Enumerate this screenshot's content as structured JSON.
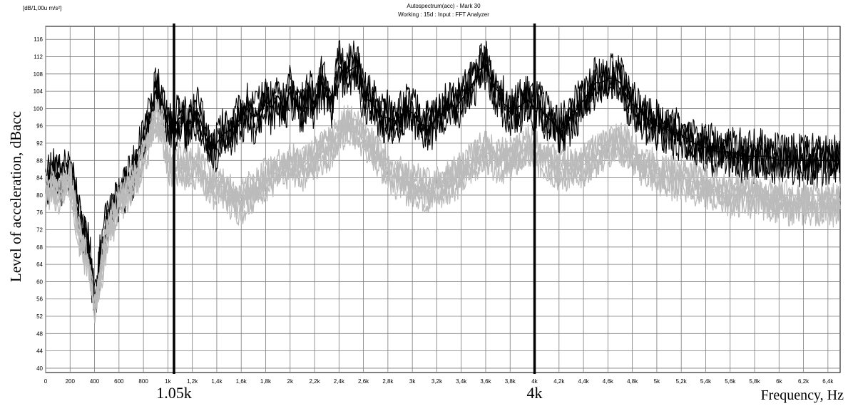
{
  "chart_data": {
    "type": "line",
    "title": "Autospectrum(acc) - Mark 30",
    "subtitle": "Working : 15d : Input : FFT Analyzer",
    "unit_label": "[dB/1,00u m/s²]",
    "ylabel": "Level of acceleration,  dBacc",
    "xlabel": "Frequency,  Hz",
    "xlim": [
      0,
      6500
    ],
    "ylim": [
      39,
      119
    ],
    "grid": true,
    "x_ticks": [
      {
        "value": 0,
        "label": "0"
      },
      {
        "value": 200,
        "label": "200"
      },
      {
        "value": 400,
        "label": "400"
      },
      {
        "value": 600,
        "label": "600"
      },
      {
        "value": 800,
        "label": "800"
      },
      {
        "value": 1000,
        "label": "1k"
      },
      {
        "value": 1200,
        "label": "1,2k"
      },
      {
        "value": 1400,
        "label": "1,4k"
      },
      {
        "value": 1600,
        "label": "1,6k"
      },
      {
        "value": 1800,
        "label": "1,8k"
      },
      {
        "value": 2000,
        "label": "2k"
      },
      {
        "value": 2200,
        "label": "2,2k"
      },
      {
        "value": 2400,
        "label": "2,4k"
      },
      {
        "value": 2600,
        "label": "2,6k"
      },
      {
        "value": 2800,
        "label": "2,8k"
      },
      {
        "value": 3000,
        "label": "3k"
      },
      {
        "value": 3200,
        "label": "3,2k"
      },
      {
        "value": 3400,
        "label": "3,4k"
      },
      {
        "value": 3600,
        "label": "3,6k"
      },
      {
        "value": 3800,
        "label": "3,8k"
      },
      {
        "value": 4000,
        "label": "4k"
      },
      {
        "value": 4200,
        "label": "4,2k"
      },
      {
        "value": 4400,
        "label": "4,4k"
      },
      {
        "value": 4600,
        "label": "4,6k"
      },
      {
        "value": 4800,
        "label": "4,8k"
      },
      {
        "value": 5000,
        "label": "5k"
      },
      {
        "value": 5200,
        "label": "5,2k"
      },
      {
        "value": 5400,
        "label": "5,4k"
      },
      {
        "value": 5600,
        "label": "5,6k"
      },
      {
        "value": 5800,
        "label": "5,8k"
      },
      {
        "value": 6000,
        "label": "6k"
      },
      {
        "value": 6200,
        "label": "6,2k"
      },
      {
        "value": 6400,
        "label": "6,4k"
      }
    ],
    "y_ticks": [
      40,
      44,
      48,
      52,
      56,
      60,
      64,
      68,
      72,
      76,
      80,
      84,
      88,
      92,
      96,
      100,
      104,
      108,
      112,
      116
    ],
    "markers": [
      {
        "x": 1050,
        "label": "1.05k"
      },
      {
        "x": 4000,
        "label": "4k"
      }
    ],
    "series": [
      {
        "color": "#000000",
        "x": [
          0,
          50,
          100,
          150,
          200,
          250,
          300,
          350,
          400,
          450,
          500,
          550,
          600,
          650,
          700,
          750,
          800,
          850,
          900,
          950,
          1000,
          1050,
          1100,
          1150,
          1200,
          1250,
          1300,
          1350,
          1400,
          1450,
          1500,
          1550,
          1600,
          1650,
          1700,
          1750,
          1800,
          1850,
          1900,
          1950,
          2000,
          2050,
          2100,
          2150,
          2200,
          2250,
          2300,
          2350,
          2400,
          2450,
          2500,
          2550,
          2600,
          2650,
          2700,
          2750,
          2800,
          2850,
          2900,
          2950,
          3000,
          3050,
          3100,
          3150,
          3200,
          3250,
          3300,
          3350,
          3400,
          3450,
          3500,
          3550,
          3600,
          3650,
          3700,
          3750,
          3800,
          3850,
          3900,
          3950,
          4000,
          4050,
          4100,
          4150,
          4200,
          4250,
          4300,
          4350,
          4400,
          4450,
          4500,
          4550,
          4600,
          4650,
          4700,
          4750,
          4800,
          4850,
          4900,
          4950,
          5000,
          5100,
          5200,
          5300,
          5400,
          5500,
          5600,
          5700,
          5800,
          5900,
          6000,
          6100,
          6200,
          6300,
          6400,
          6500
        ],
        "y": [
          82,
          86,
          83,
          84,
          88,
          78,
          72,
          68,
          56,
          66,
          74,
          76,
          80,
          82,
          84,
          88,
          92,
          98,
          104,
          102,
          96,
          96,
          98,
          96,
          97,
          99,
          94,
          90,
          92,
          94,
          95,
          96,
          98,
          100,
          98,
          99,
          102,
          100,
          103,
          100,
          104,
          101,
          100,
          103,
          101,
          106,
          104,
          101,
          110,
          108,
          109,
          110,
          102,
          102,
          100,
          98,
          98,
          97,
          98,
          100,
          99,
          97,
          96,
          96,
          98,
          99,
          101,
          100,
          102,
          104,
          106,
          109,
          110,
          106,
          104,
          101,
          100,
          100,
          101,
          102,
          100,
          100,
          98,
          97,
          95,
          96,
          98,
          100,
          102,
          104,
          106,
          106,
          107,
          107,
          106,
          103,
          101,
          100,
          98,
          97,
          96,
          95,
          94,
          92,
          91,
          90,
          90,
          89,
          89,
          89,
          88,
          88,
          88,
          88,
          88,
          88
        ]
      },
      {
        "color": "#bbbbbb",
        "x": [
          0,
          50,
          100,
          150,
          200,
          250,
          300,
          350,
          400,
          450,
          500,
          550,
          600,
          650,
          700,
          750,
          800,
          850,
          900,
          950,
          1000,
          1050,
          1100,
          1150,
          1200,
          1250,
          1300,
          1350,
          1400,
          1450,
          1500,
          1550,
          1600,
          1650,
          1700,
          1750,
          1800,
          1850,
          1900,
          1950,
          2000,
          2050,
          2100,
          2150,
          2200,
          2250,
          2300,
          2350,
          2400,
          2450,
          2500,
          2550,
          2600,
          2650,
          2700,
          2750,
          2800,
          2850,
          2900,
          2950,
          3000,
          3050,
          3100,
          3150,
          3200,
          3250,
          3300,
          3350,
          3400,
          3450,
          3500,
          3550,
          3600,
          3650,
          3700,
          3750,
          3800,
          3850,
          3900,
          3950,
          4000,
          4050,
          4100,
          4150,
          4200,
          4250,
          4300,
          4350,
          4400,
          4450,
          4500,
          4550,
          4600,
          4650,
          4700,
          4750,
          4800,
          4850,
          4900,
          4950,
          5000,
          5100,
          5200,
          5300,
          5400,
          5500,
          5600,
          5700,
          5800,
          5900,
          6000,
          6100,
          6200,
          6300,
          6400,
          6500
        ],
        "y": [
          80,
          82,
          80,
          82,
          84,
          74,
          68,
          64,
          54,
          62,
          70,
          74,
          78,
          80,
          82,
          84,
          88,
          93,
          98,
          96,
          88,
          86,
          87,
          86,
          86,
          87,
          84,
          82,
          82,
          82,
          80,
          79,
          78,
          80,
          81,
          82,
          84,
          84,
          86,
          86,
          87,
          87,
          86,
          88,
          88,
          90,
          90,
          92,
          94,
          96,
          96,
          95,
          93,
          92,
          90,
          88,
          86,
          84,
          84,
          83,
          82,
          82,
          81,
          81,
          82,
          82,
          83,
          84,
          85,
          86,
          88,
          89,
          90,
          89,
          88,
          88,
          88,
          89,
          90,
          91,
          90,
          89,
          88,
          87,
          86,
          86,
          86,
          86,
          87,
          88,
          89,
          90,
          91,
          92,
          92,
          91,
          90,
          88,
          87,
          86,
          85,
          84,
          84,
          83,
          82,
          81,
          80,
          80,
          80,
          79,
          79,
          78,
          78,
          78,
          78,
          78
        ]
      }
    ]
  }
}
